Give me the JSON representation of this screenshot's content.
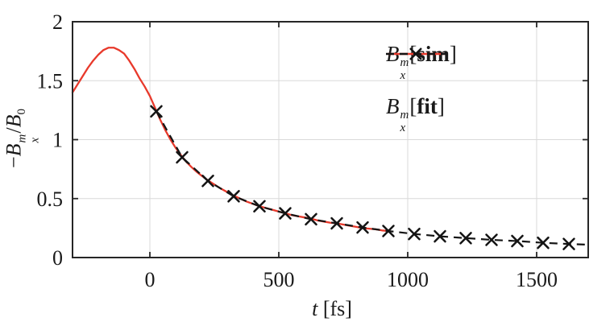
{
  "figure": {
    "background": "#ffffff",
    "axis_color": "#262626",
    "grid_color": "#d9d9d9",
    "tick_label_color": "#1a1a1a",
    "tick_label_font_size": 26
  },
  "chart_data": {
    "type": "line",
    "title": "",
    "xlabel": "t [fs]",
    "xlabel_var": "t",
    "xlabel_unit": "[fs]",
    "ylabel": "-B_x^m / B_0",
    "ylabel_parts": {
      "minus": "−",
      "base": "B",
      "sup": "m",
      "sub": "x",
      "slash": "/",
      "denom_base": "B",
      "denom_sub": "0"
    },
    "xlim": [
      -300,
      1700
    ],
    "ylim": [
      0,
      2
    ],
    "xticks": [
      0,
      500,
      1000,
      1500
    ],
    "xtick_labels": [
      "0",
      "500",
      "1000",
      "1500"
    ],
    "yticks": [
      0,
      0.5,
      1,
      1.5,
      2
    ],
    "ytick_labels": [
      "0",
      "0.5",
      "1",
      "1.5",
      "2"
    ],
    "grid": true,
    "legend_position": "top-right-inside",
    "legend": [
      {
        "base": "B",
        "sup": "m",
        "sub": "x",
        "open": "[",
        "tag": "sim",
        "close": "]"
      },
      {
        "base": "B",
        "sup": "m",
        "sub": "x",
        "open": "[",
        "tag": "fit",
        "close": "]"
      }
    ],
    "series": [
      {
        "name": "B_x^m[sim]",
        "style": "solid",
        "color": "#e8392b",
        "marker": "none",
        "x": [
          -300,
          -280,
          -260,
          -240,
          -220,
          -200,
          -180,
          -160,
          -140,
          -120,
          -100,
          -80,
          -60,
          -40,
          -20,
          0,
          20,
          40,
          60,
          80,
          100,
          120,
          140,
          160,
          180,
          200,
          225,
          250,
          275,
          300,
          325,
          350,
          375,
          400,
          425,
          450,
          475,
          500,
          525,
          550,
          575,
          600,
          625,
          650,
          675,
          700,
          725,
          750,
          775,
          800,
          825,
          850,
          875,
          900,
          925
        ],
        "y": [
          1.4,
          1.47,
          1.54,
          1.61,
          1.67,
          1.72,
          1.76,
          1.78,
          1.78,
          1.76,
          1.73,
          1.67,
          1.6,
          1.52,
          1.45,
          1.37,
          1.27,
          1.17,
          1.08,
          1.0,
          0.93,
          0.87,
          0.815,
          0.77,
          0.73,
          0.695,
          0.655,
          0.62,
          0.585,
          0.555,
          0.525,
          0.5,
          0.475,
          0.455,
          0.435,
          0.42,
          0.405,
          0.39,
          0.375,
          0.36,
          0.35,
          0.34,
          0.33,
          0.315,
          0.305,
          0.295,
          0.29,
          0.28,
          0.27,
          0.26,
          0.25,
          0.245,
          0.24,
          0.23,
          0.225
        ]
      },
      {
        "name": "B_x^m[fit]",
        "style": "dashed",
        "color": "#141414",
        "marker": "x",
        "x": [
          25,
          125,
          225,
          325,
          425,
          525,
          625,
          725,
          825,
          925,
          1025,
          1125,
          1225,
          1325,
          1425,
          1525,
          1625
        ],
        "y": [
          1.24,
          0.85,
          0.65,
          0.52,
          0.435,
          0.375,
          0.325,
          0.29,
          0.255,
          0.225,
          0.2,
          0.18,
          0.165,
          0.15,
          0.14,
          0.125,
          0.115
        ],
        "line_extend_x": 1690,
        "line_extend_y": 0.11
      }
    ]
  }
}
